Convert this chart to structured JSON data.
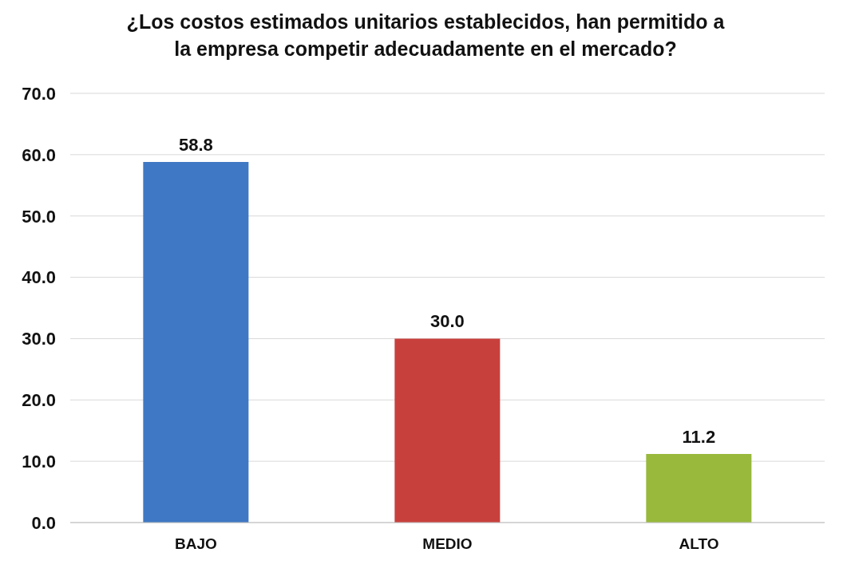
{
  "chart_data": {
    "type": "bar",
    "title": "¿Los costos estimados unitarios establecidos, han permitido a la empresa competir adecuadamente en el mercado?",
    "categories": [
      "BAJO",
      "MEDIO",
      "ALTO"
    ],
    "values": [
      58.8,
      30.0,
      11.2
    ],
    "colors": [
      "#3f78c4",
      "#c8403c",
      "#98b93c"
    ],
    "value_labels": [
      "58.8",
      "30.0",
      "11.2"
    ],
    "ylim": [
      0,
      70
    ],
    "yticks": [
      {
        "value": 0,
        "label": "0.0"
      },
      {
        "value": 10,
        "label": "10.0"
      },
      {
        "value": 20,
        "label": "20.0"
      },
      {
        "value": 30,
        "label": "30.0"
      },
      {
        "value": 40,
        "label": "40.0"
      },
      {
        "value": 50,
        "label": "50.0"
      },
      {
        "value": 60,
        "label": "60.0"
      },
      {
        "value": 70,
        "label": "70.0"
      }
    ],
    "grid": "y"
  }
}
